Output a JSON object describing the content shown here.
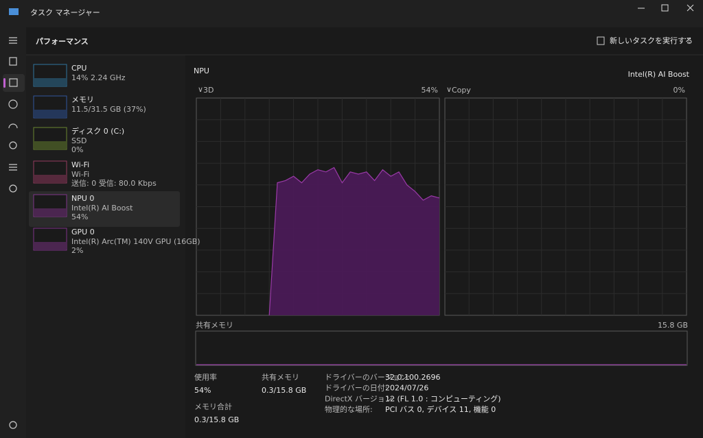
{
  "window": {
    "title": "タスク マネージャー"
  },
  "header": {
    "title": "パフォーマンス",
    "run_task": "新しいタスクを実行する"
  },
  "sidebar": [
    {
      "name": "CPU",
      "lines": [
        "14%  2.24 GHz"
      ],
      "color": "#3a9bd5"
    },
    {
      "name": "メモリ",
      "lines": [
        "11.5/31.5 GB (37%)"
      ],
      "color": "#3a6fd5"
    },
    {
      "name": "ディスク 0 (C:)",
      "lines": [
        "SSD",
        "0%"
      ],
      "color": "#8bb43a"
    },
    {
      "name": "Wi-Fi",
      "lines": [
        "Wi-Fi",
        "送信: 0 受信: 80.0 Kbps"
      ],
      "color": "#c9497e"
    },
    {
      "name": "NPU 0",
      "lines": [
        "Intel(R) AI Boost",
        "54%"
      ],
      "color": "#a83fb8"
    },
    {
      "name": "GPU 0",
      "lines": [
        "Intel(R) Arc(TM) 140V GPU (16GB)",
        "2%"
      ],
      "color": "#a83fb8"
    }
  ],
  "panel": {
    "title": "NPU",
    "device": "Intel(R) AI Boost",
    "graphs": [
      {
        "label": "3D",
        "value_label": "54%",
        "ylim": [
          0,
          100
        ],
        "values": [
          null,
          null,
          null,
          null,
          null,
          null,
          null,
          null,
          null,
          0,
          61,
          62,
          64,
          61,
          65,
          67,
          66,
          68,
          61,
          66,
          65,
          66,
          62,
          67,
          64,
          66,
          60,
          57,
          53,
          55,
          54
        ]
      },
      {
        "label": "Copy",
        "value_label": "0%"
      }
    ],
    "shared_memory": {
      "label": "共有メモリ",
      "max": "15.8 GB"
    },
    "stats": [
      {
        "label": "使用率",
        "value": "54%"
      },
      {
        "label": "共有メモリ",
        "value": "0.3/15.8 GB"
      },
      {
        "label": "メモリ合計",
        "value": "0.3/15.8 GB"
      }
    ],
    "details": [
      [
        "ドライバーのバージョン:",
        "32.0.100.2696"
      ],
      [
        "ドライバーの日付:",
        "2024/07/26"
      ],
      [
        "DirectX バージョン:",
        "12 (FL 1.0 : コンピューティング)"
      ],
      [
        "物理的な場所:",
        "PCI バス 0, デバイス 11, 機能 0"
      ]
    ]
  }
}
